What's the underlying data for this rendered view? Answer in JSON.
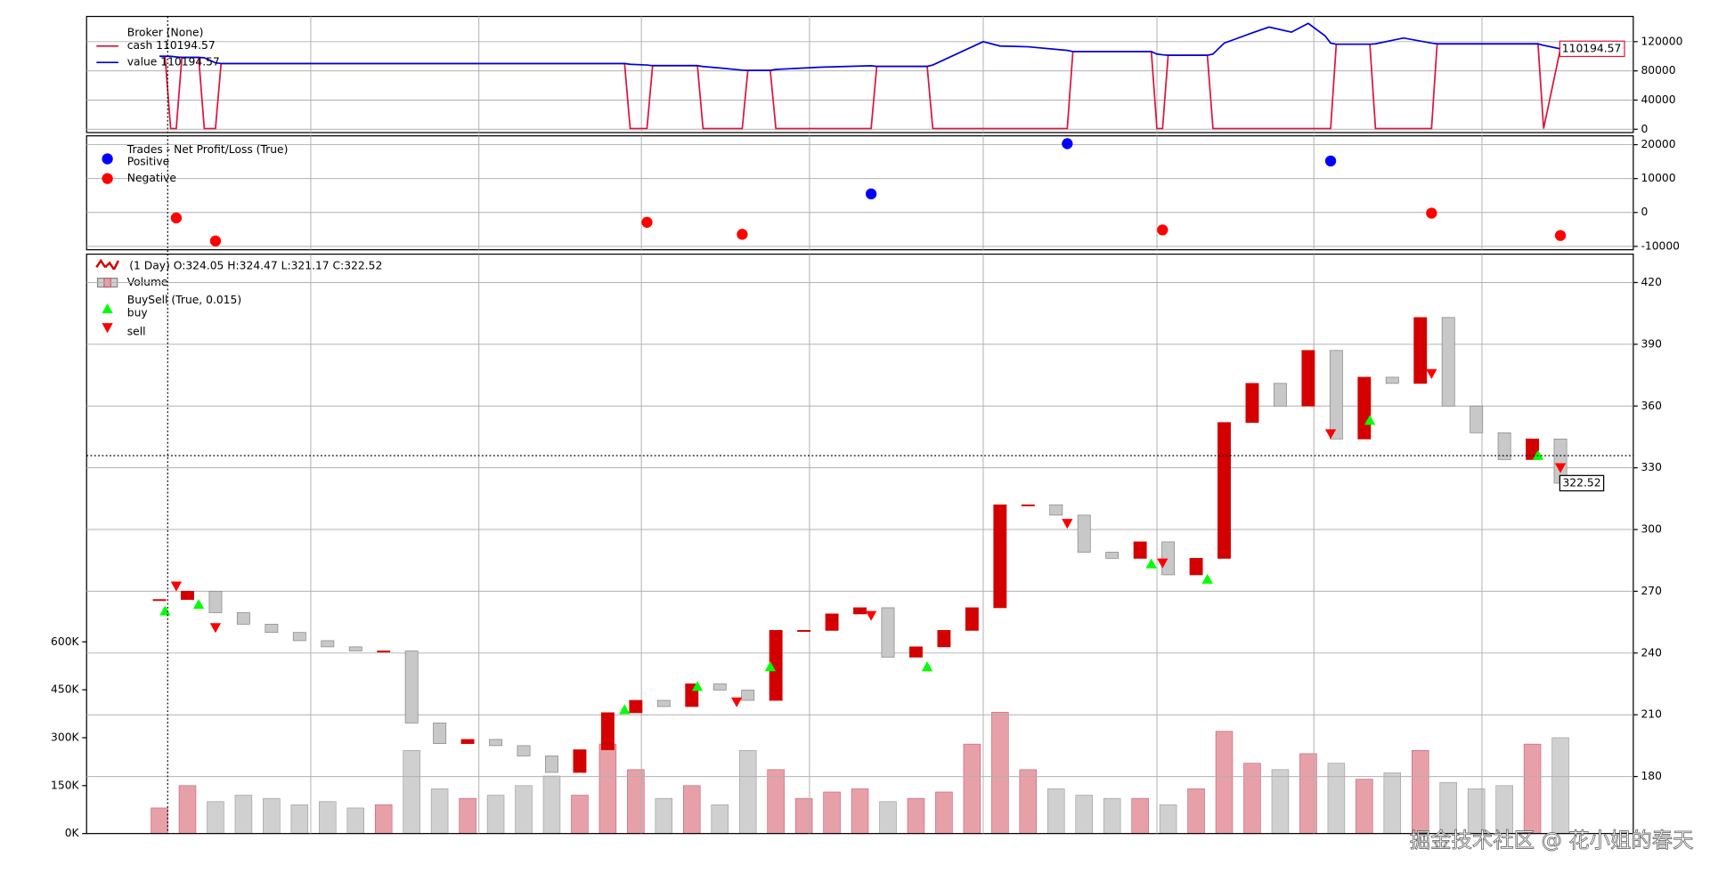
{
  "chart_data": [
    {
      "type": "line",
      "label": "Broker (None)",
      "xlim": [
        -13,
        263
      ],
      "xticks": [
        27,
        57,
        86,
        116,
        147,
        178,
        206,
        236
      ],
      "ylim": [
        -4500,
        154500
      ],
      "yticks": [
        0,
        40000,
        80000,
        120000
      ],
      "grid": true,
      "x": [
        0,
        1,
        2,
        3,
        4,
        7,
        8,
        10,
        11,
        83,
        84,
        87,
        88,
        96,
        97,
        100,
        104,
        105,
        109,
        110,
        118,
        127,
        128,
        137,
        138,
        147,
        150,
        155,
        162,
        163,
        177,
        178,
        179,
        180,
        187,
        188,
        190,
        195,
        198,
        202,
        205,
        208,
        209,
        210,
        216,
        217,
        222,
        227,
        228,
        246,
        247,
        250
      ],
      "series": [
        {
          "name": "cash 110194.57",
          "color": "#dc143c",
          "values": [
            100000,
            100000,
            1000,
            1000,
            98400,
            98400,
            1000,
            1000,
            90000,
            90000,
            1000,
            1000,
            87100,
            87100,
            1000,
            1000,
            1000,
            80650,
            80650,
            1000,
            1000,
            1000,
            86130,
            86130,
            1000,
            1000,
            1000,
            1000,
            1000,
            106430,
            106430,
            1000,
            1000,
            101280,
            101280,
            1000,
            1000,
            1000,
            1000,
            1000,
            1000,
            1000,
            1000,
            116480,
            116480,
            1000,
            1000,
            1000,
            117000,
            117000,
            1000,
            110194.57
          ]
        },
        {
          "name": "value 110194.57",
          "color": "#0000dd",
          "values": [
            100000,
            100000,
            100000,
            99000,
            98400,
            98400,
            98000,
            91000,
            90000,
            90000,
            89000,
            88000,
            87100,
            87100,
            86000,
            84000,
            81000,
            80650,
            80650,
            82000,
            85000,
            87000,
            86130,
            86130,
            88000,
            120000,
            114000,
            113000,
            108000,
            106430,
            106430,
            103000,
            102000,
            101280,
            101280,
            103000,
            118000,
            132000,
            140000,
            133000,
            145000,
            128000,
            118000,
            116480,
            116480,
            117000,
            125000,
            118000,
            117000,
            117000,
            115000,
            110194.57
          ]
        }
      ]
    },
    {
      "type": "scatter",
      "label": "Trades - Net Profit/Loss (True)",
      "xlim": [
        -13,
        263
      ],
      "xticks": [
        27,
        57,
        86,
        116,
        147,
        178,
        206,
        236
      ],
      "ylim": [
        -11000,
        22600
      ],
      "yticks": [
        -10000,
        0,
        10000,
        20000
      ],
      "grid": true,
      "series": [
        {
          "name": "Positive",
          "color": "#0000ff",
          "x": [
            127,
            162,
            209
          ],
          "values": [
            5480,
            20300,
            15200
          ]
        },
        {
          "name": "Negative",
          "color": "#ff0000",
          "x": [
            3,
            10,
            87,
            104,
            179,
            227,
            250
          ],
          "values": [
            -1600,
            -8400,
            -2900,
            -6450,
            -5150,
            -200,
            -6800
          ]
        }
      ]
    },
    {
      "type": "candlestick",
      "label": "(1 Day) O:324.05 H:324.47 L:321.17 C:322.52",
      "buysell_label": "BuySell (True, 0.015)",
      "xlim": [
        -13,
        263
      ],
      "xticks": [
        27,
        57,
        86,
        116,
        147,
        178,
        206,
        236
      ],
      "ylim": [
        152.3,
        433.8
      ],
      "yticks": [
        180,
        210,
        240,
        270,
        300,
        330,
        360,
        390,
        420
      ],
      "grid": true,
      "up_color": "#d40000",
      "down_color": "#c8c8c8",
      "x": [
        0,
        5,
        10,
        15,
        20,
        25,
        30,
        35,
        40,
        45,
        50,
        55,
        60,
        65,
        70,
        75,
        80,
        85,
        90,
        95,
        100,
        105,
        110,
        115,
        120,
        125,
        130,
        135,
        140,
        145,
        150,
        155,
        160,
        165,
        170,
        175,
        180,
        185,
        190,
        195,
        200,
        205,
        210,
        215,
        220,
        225,
        230,
        235,
        240,
        245,
        250
      ],
      "close": [
        266,
        270,
        259.6,
        254,
        250,
        246,
        243,
        241,
        241,
        206,
        196,
        198,
        195,
        190,
        182,
        193,
        211,
        217,
        214,
        225,
        222,
        217,
        251,
        251,
        259,
        262,
        238,
        243,
        251,
        262,
        312,
        312,
        307,
        289,
        286,
        294,
        278,
        286,
        352,
        371,
        360,
        387,
        344,
        374,
        371,
        403,
        360,
        347,
        334,
        344,
        322.52
      ],
      "series": [
        {
          "name": "buy",
          "color": "#00ff00",
          "marker": "triangle-up",
          "x": [
            1,
            7,
            83,
            96,
            109,
            137,
            177,
            187,
            216,
            246
          ],
          "values": [
            260.4,
            263.6,
            212.5,
            223.7,
            233.3,
            233.3,
            283.3,
            275.8,
            353,
            336
          ]
        },
        {
          "name": "sell",
          "color": "#ff0000",
          "marker": "triangle-down",
          "x": [
            3,
            10,
            103,
            127,
            162,
            179,
            209,
            227,
            250
          ],
          "values": [
            272.6,
            252.4,
            216.3,
            258.3,
            303,
            283.8,
            346.6,
            375.8,
            330.1
          ]
        }
      ]
    },
    {
      "type": "bar",
      "name": "Volume",
      "xlim": [
        -13,
        263
      ],
      "ylim": [
        0,
        1813700
      ],
      "yticks": [
        {
          "value": 0,
          "label": "0K"
        },
        {
          "value": 150000,
          "label": "150K"
        },
        {
          "value": 300000,
          "label": "300K"
        },
        {
          "value": 450000,
          "label": "450K"
        },
        {
          "value": 600000,
          "label": "600K"
        }
      ],
      "up_color": "#e8a0a8",
      "down_color": "#d0d0d0",
      "x": [
        0,
        5,
        10,
        15,
        20,
        25,
        30,
        35,
        40,
        45,
        50,
        55,
        60,
        65,
        70,
        75,
        80,
        85,
        90,
        95,
        100,
        105,
        110,
        115,
        120,
        125,
        130,
        135,
        140,
        145,
        150,
        155,
        160,
        165,
        170,
        175,
        180,
        185,
        190,
        195,
        200,
        205,
        210,
        215,
        220,
        225,
        230,
        235,
        240,
        245,
        250
      ],
      "values": [
        80000,
        150000,
        100000,
        120000,
        110000,
        90000,
        100000,
        80000,
        90000,
        260000,
        140000,
        110000,
        120000,
        150000,
        180000,
        120000,
        280000,
        200000,
        110000,
        150000,
        90000,
        260000,
        200000,
        110000,
        130000,
        140000,
        100000,
        110000,
        130000,
        280000,
        380000,
        200000,
        140000,
        120000,
        110000,
        110000,
        90000,
        140000,
        320000,
        220000,
        200000,
        250000,
        220000,
        170000,
        190000,
        260000,
        160000,
        140000,
        150000,
        280000,
        300000
      ]
    }
  ],
  "watermark": "掘金技术社区 @ 花小姐的春天"
}
